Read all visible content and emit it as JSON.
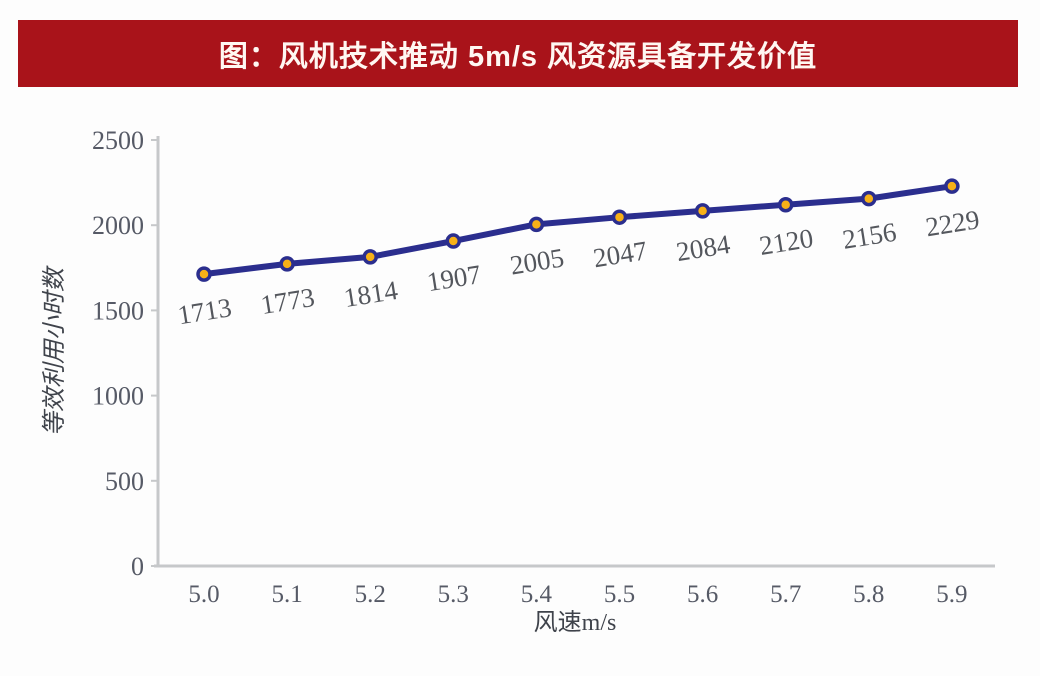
{
  "header": {
    "title": "图：风机技术推动 5m/s 风资源具备开发价值",
    "bg_color": "#A9131A",
    "text_color": "#FFF7F2"
  },
  "chart_data": {
    "type": "line",
    "categories": [
      "5.0",
      "5.1",
      "5.2",
      "5.3",
      "5.4",
      "5.5",
      "5.6",
      "5.7",
      "5.8",
      "5.9"
    ],
    "series": [
      {
        "name": "等效利用小时数",
        "values": [
          1713,
          1773,
          1814,
          1907,
          2005,
          2047,
          2084,
          2120,
          2156,
          2229
        ]
      }
    ],
    "data_labels": [
      "1713",
      "1773",
      "1814",
      "1907",
      "2005",
      "2047",
      "2084",
      "2120",
      "2156",
      "2229"
    ],
    "xlabel": "风速m/s",
    "ylabel": "等效利用小时数",
    "ylim": [
      0,
      2500
    ],
    "yticks": [
      "0",
      "500",
      "1000",
      "1500",
      "2000",
      "2500"
    ],
    "grid": false,
    "legend_position": "none",
    "line_color": "#2B2E8E",
    "marker_fill": "#F8B117",
    "marker_stroke": "#2B2E8E",
    "axis_color": "#C6C8CA",
    "tick_label_color": "#565A66",
    "data_label_color": "#54575D",
    "axis_title_color": "#3F434B"
  }
}
